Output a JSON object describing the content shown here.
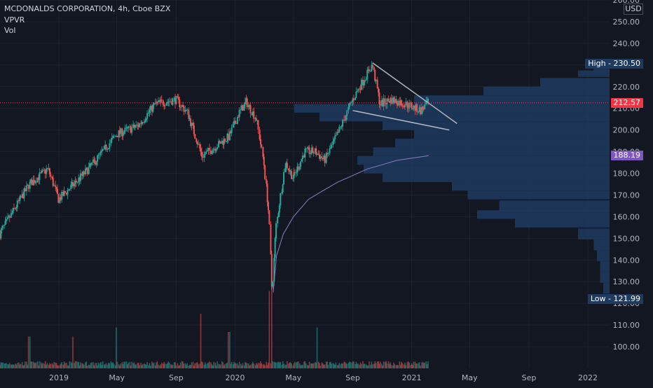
{
  "header": {
    "title": "MCDONALDS CORPORATION, 4h, Cboe BZX",
    "indicator_vpvr": "VPVR",
    "indicator_vol": "Vol"
  },
  "currency": "USD",
  "colors": {
    "background": "#131722",
    "up": "#26a69a",
    "down": "#ef5350",
    "grid": "#1e222d",
    "ma_line": "#8e7cc3",
    "trendline": "#b2b5be",
    "profile": "#1e3a5f",
    "last_price_tag": "#f23645",
    "ma_tag": "#7e57c2",
    "high_low_tag": "#1e3a5f"
  },
  "chart_data": {
    "type": "candlestick",
    "title": "MCDONALDS CORPORATION, 4h, Cboe BZX",
    "ylim": [
      90,
      260
    ],
    "y_ticks": [
      100,
      110,
      120,
      130,
      140,
      150,
      160,
      170,
      180,
      190,
      200,
      210,
      220,
      230,
      240,
      250,
      260
    ],
    "x_ticks": [
      "2019",
      "May",
      "Sep",
      "2020",
      "May",
      "Sep",
      "2021",
      "May",
      "Sep",
      "2022"
    ],
    "x_tick_dates": [
      "2019-01-01",
      "2019-05-01",
      "2019-09-01",
      "2020-01-01",
      "2020-05-01",
      "2020-09-01",
      "2021-01-01",
      "2021-05-01",
      "2021-09-01",
      "2022-01-01"
    ],
    "xlim": [
      "2018-09-01",
      "2022-02-15"
    ],
    "price_path": [
      {
        "date": "2018-09-01",
        "close": 152
      },
      {
        "date": "2018-11-01",
        "close": 175
      },
      {
        "date": "2018-12-10",
        "close": 182
      },
      {
        "date": "2019-01-01",
        "close": 168
      },
      {
        "date": "2019-02-15",
        "close": 178
      },
      {
        "date": "2019-03-15",
        "close": 185
      },
      {
        "date": "2019-05-01",
        "close": 198
      },
      {
        "date": "2019-06-15",
        "close": 202
      },
      {
        "date": "2019-07-20",
        "close": 212
      },
      {
        "date": "2019-09-01",
        "close": 214
      },
      {
        "date": "2019-09-25",
        "close": 208
      },
      {
        "date": "2019-10-25",
        "close": 188
      },
      {
        "date": "2019-11-20",
        "close": 192
      },
      {
        "date": "2019-12-20",
        "close": 197
      },
      {
        "date": "2020-01-10",
        "close": 208
      },
      {
        "date": "2020-01-25",
        "close": 213
      },
      {
        "date": "2020-02-15",
        "close": 205
      },
      {
        "date": "2020-03-01",
        "close": 185
      },
      {
        "date": "2020-03-12",
        "close": 160
      },
      {
        "date": "2020-03-18",
        "close": 125
      },
      {
        "date": "2020-03-26",
        "close": 155
      },
      {
        "date": "2020-04-15",
        "close": 185
      },
      {
        "date": "2020-05-01",
        "close": 178
      },
      {
        "date": "2020-05-25",
        "close": 190
      },
      {
        "date": "2020-06-15",
        "close": 190
      },
      {
        "date": "2020-07-05",
        "close": 186
      },
      {
        "date": "2020-08-01",
        "close": 198
      },
      {
        "date": "2020-09-01",
        "close": 214
      },
      {
        "date": "2020-10-01",
        "close": 226
      },
      {
        "date": "2020-10-12",
        "close": 230
      },
      {
        "date": "2020-10-28",
        "close": 212
      },
      {
        "date": "2020-11-20",
        "close": 214
      },
      {
        "date": "2020-12-20",
        "close": 212
      },
      {
        "date": "2021-01-20",
        "close": 209
      },
      {
        "date": "2021-02-05",
        "close": 212.57
      }
    ],
    "moving_average": [
      {
        "date": "2020-03-20",
        "value": 125
      },
      {
        "date": "2020-03-27",
        "value": 142
      },
      {
        "date": "2020-04-10",
        "value": 152
      },
      {
        "date": "2020-05-01",
        "value": 160
      },
      {
        "date": "2020-06-01",
        "value": 168
      },
      {
        "date": "2020-07-01",
        "value": 172
      },
      {
        "date": "2020-08-01",
        "value": 176
      },
      {
        "date": "2020-09-01",
        "value": 179
      },
      {
        "date": "2020-10-01",
        "value": 182
      },
      {
        "date": "2020-11-01",
        "value": 184
      },
      {
        "date": "2020-12-01",
        "value": 186
      },
      {
        "date": "2021-01-01",
        "value": 187
      },
      {
        "date": "2021-02-05",
        "value": 188.19
      }
    ],
    "trendlines": [
      {
        "from": {
          "date": "2020-10-12",
          "value": 231
        },
        "to": {
          "date": "2021-04-05",
          "value": 203
        }
      },
      {
        "from": {
          "date": "2020-09-01",
          "value": 209
        },
        "to": {
          "date": "2021-03-20",
          "value": 200
        }
      }
    ],
    "volume_profile": [
      {
        "price": 127,
        "volume": 0.02
      },
      {
        "price": 132,
        "volume": 0.03
      },
      {
        "price": 137,
        "volume": 0.03
      },
      {
        "price": 142,
        "volume": 0.04
      },
      {
        "price": 147,
        "volume": 0.05
      },
      {
        "price": 152,
        "volume": 0.1
      },
      {
        "price": 157,
        "volume": 0.3
      },
      {
        "price": 161,
        "volume": 0.42
      },
      {
        "price": 165,
        "volume": 0.35
      },
      {
        "price": 170,
        "volume": 0.45
      },
      {
        "price": 174,
        "volume": 0.5
      },
      {
        "price": 178,
        "volume": 0.72
      },
      {
        "price": 182,
        "volume": 0.78
      },
      {
        "price": 186,
        "volume": 0.8
      },
      {
        "price": 190,
        "volume": 0.75
      },
      {
        "price": 194,
        "volume": 0.68
      },
      {
        "price": 198,
        "volume": 0.62
      },
      {
        "price": 202,
        "volume": 0.72
      },
      {
        "price": 206,
        "volume": 0.92
      },
      {
        "price": 210,
        "volume": 1.0
      },
      {
        "price": 214,
        "volume": 0.62
      },
      {
        "price": 218,
        "volume": 0.4
      },
      {
        "price": 222,
        "volume": 0.22
      },
      {
        "price": 226,
        "volume": 0.1
      },
      {
        "price": 229,
        "volume": 0.05
      }
    ],
    "volume_spikes": [
      {
        "date": "2018-11-01",
        "volume": 0.35
      },
      {
        "date": "2019-01-30",
        "volume": 0.35
      },
      {
        "date": "2019-04-30",
        "volume": 0.45
      },
      {
        "date": "2019-10-22",
        "volume": 0.6
      },
      {
        "date": "2019-12-20",
        "volume": 0.4
      },
      {
        "date": "2020-03-13",
        "volume": 0.85
      },
      {
        "date": "2020-03-18",
        "volume": 1.0
      },
      {
        "date": "2020-06-19",
        "volume": 0.45
      }
    ],
    "last_price": 212.57,
    "last_price_label": "212.57",
    "ma_last_label": "188.19",
    "high_label": "High - 230.50",
    "high_value": 230.5,
    "low_label": "Low - 121.99",
    "low_value": 121.99,
    "grid": true
  }
}
